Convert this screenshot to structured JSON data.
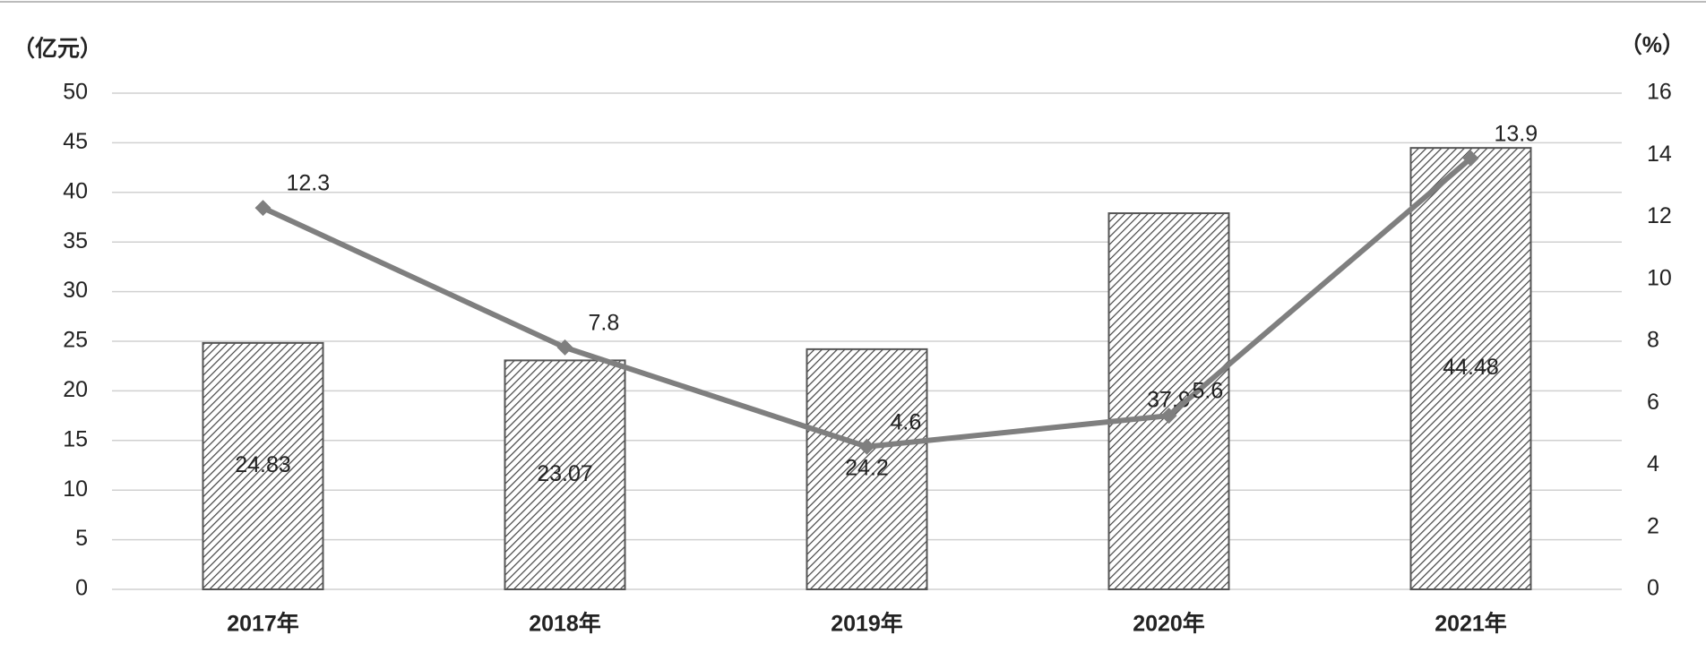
{
  "chart_data": {
    "type": "combo",
    "y_unit": "（亿元）",
    "y2_unit": "（%）",
    "categories": [
      "2017年",
      "2018年",
      "2019年",
      "2020年",
      "2021年"
    ],
    "series": [
      {
        "type": "bar",
        "color": "#555555",
        "values": [
          24.83,
          23.07,
          24.2,
          37.9,
          44.48
        ]
      },
      {
        "type": "line",
        "axis": "y2",
        "color": "#7f7f7f",
        "values": [
          12.3,
          7.8,
          4.6,
          5.6,
          13.9
        ]
      }
    ],
    "ylim": [
      0,
      50
    ],
    "yticks": [
      0,
      5,
      10,
      15,
      20,
      25,
      30,
      35,
      40,
      45,
      50
    ],
    "y2lim": [
      0,
      16
    ],
    "y2ticks": [
      0,
      2,
      4,
      6,
      8,
      10,
      12,
      14,
      16
    ],
    "grid": true
  }
}
